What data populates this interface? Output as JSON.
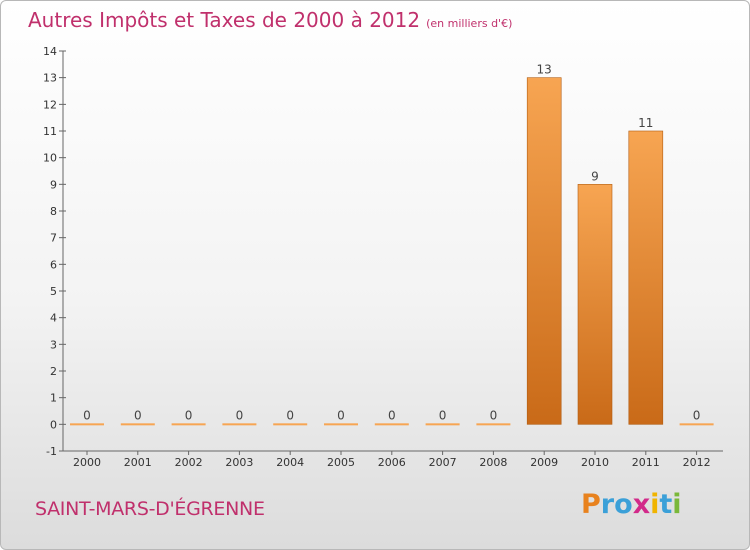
{
  "title": "Autres Impôts et Taxes de 2000 à 2012",
  "unit": "(en milliers d'€)",
  "commune": "SAINT-MARS-D'ÉGRENNE",
  "logo": {
    "letters": [
      "P",
      "r",
      "o",
      "x",
      "i",
      "t",
      "i"
    ],
    "colors": [
      "#e8821e",
      "#3ba0d8",
      "#3ba0d8",
      "#d22a8a",
      "#f0b400",
      "#3ba0d8",
      "#7ab83a"
    ]
  },
  "colors": {
    "bar_top": "#f7a552",
    "bar_bottom": "#c96a18",
    "title": "#c0306c"
  },
  "chart_data": {
    "type": "bar",
    "categories": [
      "2000",
      "2001",
      "2002",
      "2003",
      "2004",
      "2005",
      "2006",
      "2007",
      "2008",
      "2009",
      "2010",
      "2011",
      "2012"
    ],
    "values": [
      0,
      0,
      0,
      0,
      0,
      0,
      0,
      0,
      0,
      13,
      9,
      11,
      0
    ],
    "value_labels": [
      "0",
      "0",
      "0",
      "0",
      "0",
      "0",
      "0",
      "0",
      "0",
      "13",
      "9",
      "11",
      "0"
    ],
    "ylim": [
      -1,
      14
    ],
    "yticks": [
      "-1",
      "0",
      "1",
      "2",
      "3",
      "4",
      "5",
      "6",
      "7",
      "8",
      "9",
      "10",
      "11",
      "12",
      "13",
      "14"
    ],
    "grid": false,
    "legend": "none"
  }
}
